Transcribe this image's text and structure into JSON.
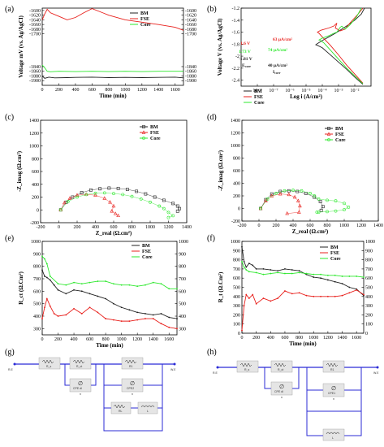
{
  "colors": {
    "BM": "#222222",
    "FSE": "#e8201c",
    "Core": "#2ee82e",
    "circuit": "#2b2bd6"
  },
  "panels_text": {
    "a": "(a)",
    "b": "(b)",
    "c": "(c)",
    "d": "(d)",
    "e": "(e)",
    "f": "(f)",
    "g": "(g)",
    "h": "(h)"
  },
  "chart_data": [
    {
      "id": "a",
      "type": "line",
      "xlabel": "Time (min)",
      "ylabel": "Voltage mV (vs. Ag/AgCl)",
      "xlim": [
        0,
        1700
      ],
      "ylim": [
        -1920,
        -1590
      ],
      "xticks": [
        0,
        200,
        400,
        600,
        800,
        1000,
        1200,
        1400,
        1600
      ],
      "yticks": [
        -1600,
        -1620,
        -1640,
        -1660,
        -1680,
        -1700,
        -1840,
        -1860,
        -1880,
        -1900
      ],
      "y2ticks": [
        -1600,
        -1620,
        -1640,
        -1660,
        -1680,
        -1700,
        -1840,
        -1860,
        -1880,
        -1900
      ],
      "legend": "top-right",
      "series": [
        {
          "name": "BM",
          "x": [
            0,
            30,
            80,
            150,
            300,
            400,
            600,
            800,
            1000,
            1200,
            1400,
            1600,
            1700
          ],
          "y": [
            -1880,
            -1890,
            -1885,
            -1888,
            -1887,
            -1886,
            -1885,
            -1887,
            -1886,
            -1887,
            -1886,
            -1885,
            -1888
          ]
        },
        {
          "name": "FSE",
          "x": [
            0,
            30,
            60,
            100,
            200,
            300,
            400,
            500,
            600,
            800,
            1000,
            1200,
            1400,
            1600,
            1700
          ],
          "y": [
            -1640,
            -1615,
            -1595,
            -1610,
            -1625,
            -1640,
            -1630,
            -1610,
            -1592,
            -1620,
            -1640,
            -1650,
            -1660,
            -1672,
            -1685
          ]
        },
        {
          "name": "Core",
          "x": [
            0,
            30,
            60,
            100,
            200,
            400,
            600,
            800,
            1000,
            1200,
            1400,
            1600,
            1700
          ],
          "y": [
            -1833,
            -1845,
            -1860,
            -1862,
            -1860,
            -1861,
            -1860,
            -1861,
            -1860,
            -1861,
            -1860,
            -1860,
            -1860
          ]
        }
      ]
    },
    {
      "id": "b",
      "type": "line",
      "xlabel": "Log i (A/cm²)",
      "ylabel": "Voltage V (vs. Ag/AgCl)",
      "xlim": [
        -9,
        -1
      ],
      "ylim": [
        -2.5,
        -1.2
      ],
      "xticks": [
        -8,
        -7,
        -6,
        -5,
        -4,
        -3,
        -2
      ],
      "xticklabels": [
        "10⁻⁸",
        "10⁻⁷",
        "10⁻⁶",
        "10⁻⁵",
        "10⁻⁴",
        "10⁻³",
        "10⁻²"
      ],
      "yticks": [
        -1.2,
        -1.4,
        -1.6,
        -1.8,
        -2.0,
        -2.2,
        -2.4
      ],
      "legend": "bottom-left",
      "annotations": [
        {
          "text": "63 μA/cm²",
          "color": "FSE"
        },
        {
          "text": "1.6 V",
          "color": "FSE"
        },
        {
          "text": "74 μA/cm²",
          "color": "Core"
        },
        {
          "text": "1.73 V",
          "color": "Core"
        },
        {
          "text": "-1.81 V",
          "color": "BM"
        },
        {
          "text": "E",
          "sub": "corr",
          "color": "BM"
        },
        {
          "text": "40 μA/cm²",
          "color": "BM"
        },
        {
          "text": "I",
          "sub": "corr",
          "color": "BM"
        }
      ],
      "series": [
        {
          "name": "BM",
          "x": [
            -1.5,
            -2,
            -2.5,
            -3,
            -3.5,
            -4,
            -4.3,
            -4.4,
            -4.3,
            -4,
            -3.6,
            -3.2,
            -2.8,
            -2.4,
            -2.0,
            -1.6,
            -1.4
          ],
          "y": [
            -2.47,
            -2.35,
            -2.22,
            -2.1,
            -1.98,
            -1.86,
            -1.82,
            -1.81,
            -1.79,
            -1.74,
            -1.68,
            -1.62,
            -1.55,
            -1.48,
            -1.4,
            -1.3,
            -1.2
          ]
        },
        {
          "name": "FSE",
          "x": [
            -1.5,
            -2,
            -2.5,
            -3,
            -3.5,
            -4,
            -4.2,
            -4.3,
            -4.1,
            -3.6,
            -3.3,
            -3.1,
            -3.2,
            -2.9,
            -2.6,
            -2.3,
            -1.8,
            -1.5
          ],
          "y": [
            -2.45,
            -2.3,
            -2.15,
            -1.98,
            -1.82,
            -1.68,
            -1.62,
            -1.6,
            -1.57,
            -1.53,
            -1.5,
            -1.45,
            -1.53,
            -1.58,
            -1.55,
            -1.45,
            -1.3,
            -1.2
          ]
        },
        {
          "name": "Core",
          "x": [
            -1.5,
            -2,
            -2.5,
            -3,
            -3.5,
            -3.9,
            -4.1,
            -4.2,
            -4.0,
            -3.6,
            -3.3,
            -3.1,
            -2.9,
            -2.8,
            -2.6,
            -2.3,
            -1.9,
            -1.6
          ],
          "y": [
            -2.46,
            -2.33,
            -2.2,
            -2.05,
            -1.9,
            -1.78,
            -1.74,
            -1.73,
            -1.7,
            -1.66,
            -1.62,
            -1.6,
            -1.52,
            -1.5,
            -1.55,
            -1.48,
            -1.35,
            -1.2
          ]
        }
      ]
    },
    {
      "id": "c",
      "type": "scatter",
      "xlabel": "Z_real (Ω.cm²)",
      "ylabel": "-Z_imag (Ω.cm²)",
      "xlim": [
        -200,
        1400
      ],
      "ylim": [
        -200,
        1400
      ],
      "xticks": [
        -200,
        0,
        200,
        400,
        600,
        800,
        1000,
        1200,
        1400
      ],
      "yticks": [
        -200,
        0,
        200,
        400,
        600,
        800,
        1000,
        1200,
        1400
      ],
      "legend": "top-right",
      "series": [
        {
          "name": "BM",
          "x": [
            20,
            80,
            150,
            250,
            350,
            450,
            550,
            650,
            750,
            850,
            950,
            1050,
            1150,
            1250,
            1300,
            1320,
            1300
          ],
          "y": [
            0,
            120,
            200,
            270,
            310,
            330,
            340,
            335,
            320,
            290,
            250,
            200,
            150,
            100,
            60,
            20,
            -20
          ]
        },
        {
          "name": "FSE",
          "x": [
            20,
            60,
            120,
            200,
            300,
            400,
            500,
            560,
            600,
            580,
            620,
            650
          ],
          "y": [
            0,
            110,
            180,
            230,
            240,
            230,
            180,
            120,
            60,
            -20,
            -60,
            -90
          ]
        },
        {
          "name": "Core",
          "x": [
            20,
            100,
            200,
            300,
            400,
            500,
            600,
            700,
            800,
            900,
            1000,
            1100,
            1150,
            1200,
            1250,
            1200
          ],
          "y": [
            0,
            130,
            200,
            240,
            260,
            265,
            255,
            240,
            210,
            170,
            120,
            60,
            20,
            -40,
            -90,
            -120
          ]
        }
      ]
    },
    {
      "id": "d",
      "type": "scatter",
      "xlabel": "Z_real (Ω.cm²)",
      "ylabel": "-Z_imag (Ω.cm²)",
      "xlim": [
        -200,
        1400
      ],
      "ylim": [
        -200,
        1400
      ],
      "xticks": [
        -200,
        0,
        200,
        400,
        600,
        800,
        1000,
        1200,
        1400
      ],
      "yticks": [
        -200,
        0,
        200,
        400,
        600,
        800,
        1000,
        1200,
        1400
      ],
      "legend": "top-right",
      "series": [
        {
          "name": "BM",
          "x": [
            20,
            80,
            150,
            250,
            350,
            450,
            550,
            650,
            720,
            750,
            730
          ],
          "y": [
            0,
            140,
            230,
            270,
            280,
            270,
            240,
            180,
            110,
            30,
            -30
          ]
        },
        {
          "name": "FSE",
          "x": [
            20,
            80,
            150,
            250,
            350,
            420,
            460,
            480,
            470,
            330
          ],
          "y": [
            0,
            120,
            200,
            230,
            220,
            180,
            120,
            40,
            -60,
            -80
          ]
        },
        {
          "name": "Core",
          "x": [
            20,
            100,
            200,
            300,
            400,
            500,
            600,
            650,
            700,
            800,
            900,
            1000,
            1050,
            1000,
            900,
            800,
            700,
            680
          ],
          "y": [
            0,
            150,
            240,
            280,
            290,
            280,
            240,
            200,
            150,
            130,
            120,
            80,
            20,
            -20,
            -40,
            -50,
            -60,
            -60
          ]
        }
      ]
    },
    {
      "id": "e",
      "type": "line",
      "xlabel": "Time (min)",
      "ylabel": "R_ct (Ω.Cm²)",
      "xlim": [
        0,
        1700
      ],
      "ylim": [
        250,
        1000
      ],
      "xticks": [
        0,
        200,
        400,
        600,
        800,
        1000,
        1200,
        1400,
        1600
      ],
      "yticks": [
        300,
        400,
        500,
        600,
        700,
        800,
        900,
        1000
      ],
      "y2ticks": [
        300,
        400,
        500,
        600,
        700,
        800,
        900,
        1000
      ],
      "legend": "top-right",
      "series": [
        {
          "name": "BM",
          "x": [
            0,
            30,
            60,
            100,
            150,
            200,
            300,
            400,
            500,
            600,
            700,
            800,
            900,
            1000,
            1100,
            1200,
            1300,
            1400,
            1500,
            1600,
            1700
          ],
          "y": [
            770,
            720,
            710,
            690,
            650,
            610,
            580,
            610,
            600,
            580,
            560,
            540,
            500,
            470,
            450,
            430,
            420,
            410,
            420,
            390,
            380
          ]
        },
        {
          "name": "FSE",
          "x": [
            0,
            30,
            60,
            100,
            150,
            200,
            300,
            400,
            500,
            600,
            700,
            800,
            900,
            1000,
            1100,
            1200,
            1300,
            1400,
            1500,
            1600,
            1700
          ],
          "y": [
            380,
            470,
            540,
            480,
            420,
            400,
            410,
            460,
            420,
            470,
            430,
            380,
            370,
            360,
            360,
            370,
            380,
            380,
            340,
            310,
            300
          ]
        },
        {
          "name": "Core",
          "x": [
            0,
            30,
            60,
            100,
            200,
            300,
            400,
            500,
            600,
            700,
            800,
            900,
            1000,
            1100,
            1200,
            1300,
            1400,
            1500,
            1600,
            1700
          ],
          "y": [
            880,
            860,
            820,
            720,
            660,
            650,
            670,
            660,
            670,
            680,
            680,
            660,
            650,
            650,
            640,
            650,
            670,
            660,
            620,
            620
          ]
        }
      ]
    },
    {
      "id": "f",
      "type": "line",
      "xlabel": "Time (min)",
      "ylabel": "R_t (Ω.Cm²)",
      "xlim": [
        0,
        1700
      ],
      "ylim": [
        0,
        1000
      ],
      "xticks": [
        0,
        200,
        400,
        600,
        800,
        1000,
        1200,
        1400,
        1600
      ],
      "yticks": [
        0,
        100,
        200,
        300,
        400,
        500,
        600,
        700,
        800,
        900,
        1000
      ],
      "y2ticks": [
        0,
        100,
        200,
        300,
        400,
        500,
        600,
        700,
        800,
        900,
        1000
      ],
      "legend": "top-right",
      "series": [
        {
          "name": "BM",
          "x": [
            0,
            30,
            60,
            100,
            150,
            200,
            300,
            400,
            500,
            600,
            700,
            800,
            900,
            1000,
            1100,
            1200,
            1300,
            1400,
            1500,
            1600,
            1700
          ],
          "y": [
            940,
            780,
            720,
            760,
            740,
            700,
            700,
            690,
            680,
            700,
            690,
            680,
            640,
            610,
            600,
            580,
            560,
            540,
            500,
            480,
            410
          ]
        },
        {
          "name": "FSE",
          "x": [
            0,
            30,
            60,
            100,
            150,
            200,
            300,
            400,
            500,
            600,
            700,
            800,
            900,
            1000,
            1100,
            1200,
            1300,
            1400,
            1500,
            1600,
            1700
          ],
          "y": [
            30,
            300,
            420,
            380,
            420,
            320,
            380,
            350,
            380,
            460,
            430,
            440,
            410,
            400,
            400,
            400,
            400,
            410,
            440,
            470,
            420
          ]
        },
        {
          "name": "Core",
          "x": [
            0,
            30,
            60,
            100,
            200,
            300,
            400,
            500,
            600,
            700,
            800,
            900,
            1000,
            1100,
            1200,
            1300,
            1400,
            1500,
            1600,
            1700
          ],
          "y": [
            780,
            720,
            690,
            670,
            660,
            640,
            650,
            660,
            650,
            650,
            660,
            650,
            640,
            640,
            630,
            630,
            620,
            620,
            620,
            610
          ]
        }
      ]
    }
  ],
  "circuits": {
    "g": {
      "labels": [
        "R.E",
        "W.E",
        "R_s",
        "R_ct",
        "CPE dl",
        "n",
        "R1",
        "CPE2",
        "n",
        "RL",
        "L"
      ]
    },
    "h": {
      "labels": [
        "R.E",
        "W.E",
        "R_s",
        "R_ct",
        "CPE dl",
        "n",
        "R1",
        "CPE1",
        "n",
        "L"
      ]
    }
  }
}
